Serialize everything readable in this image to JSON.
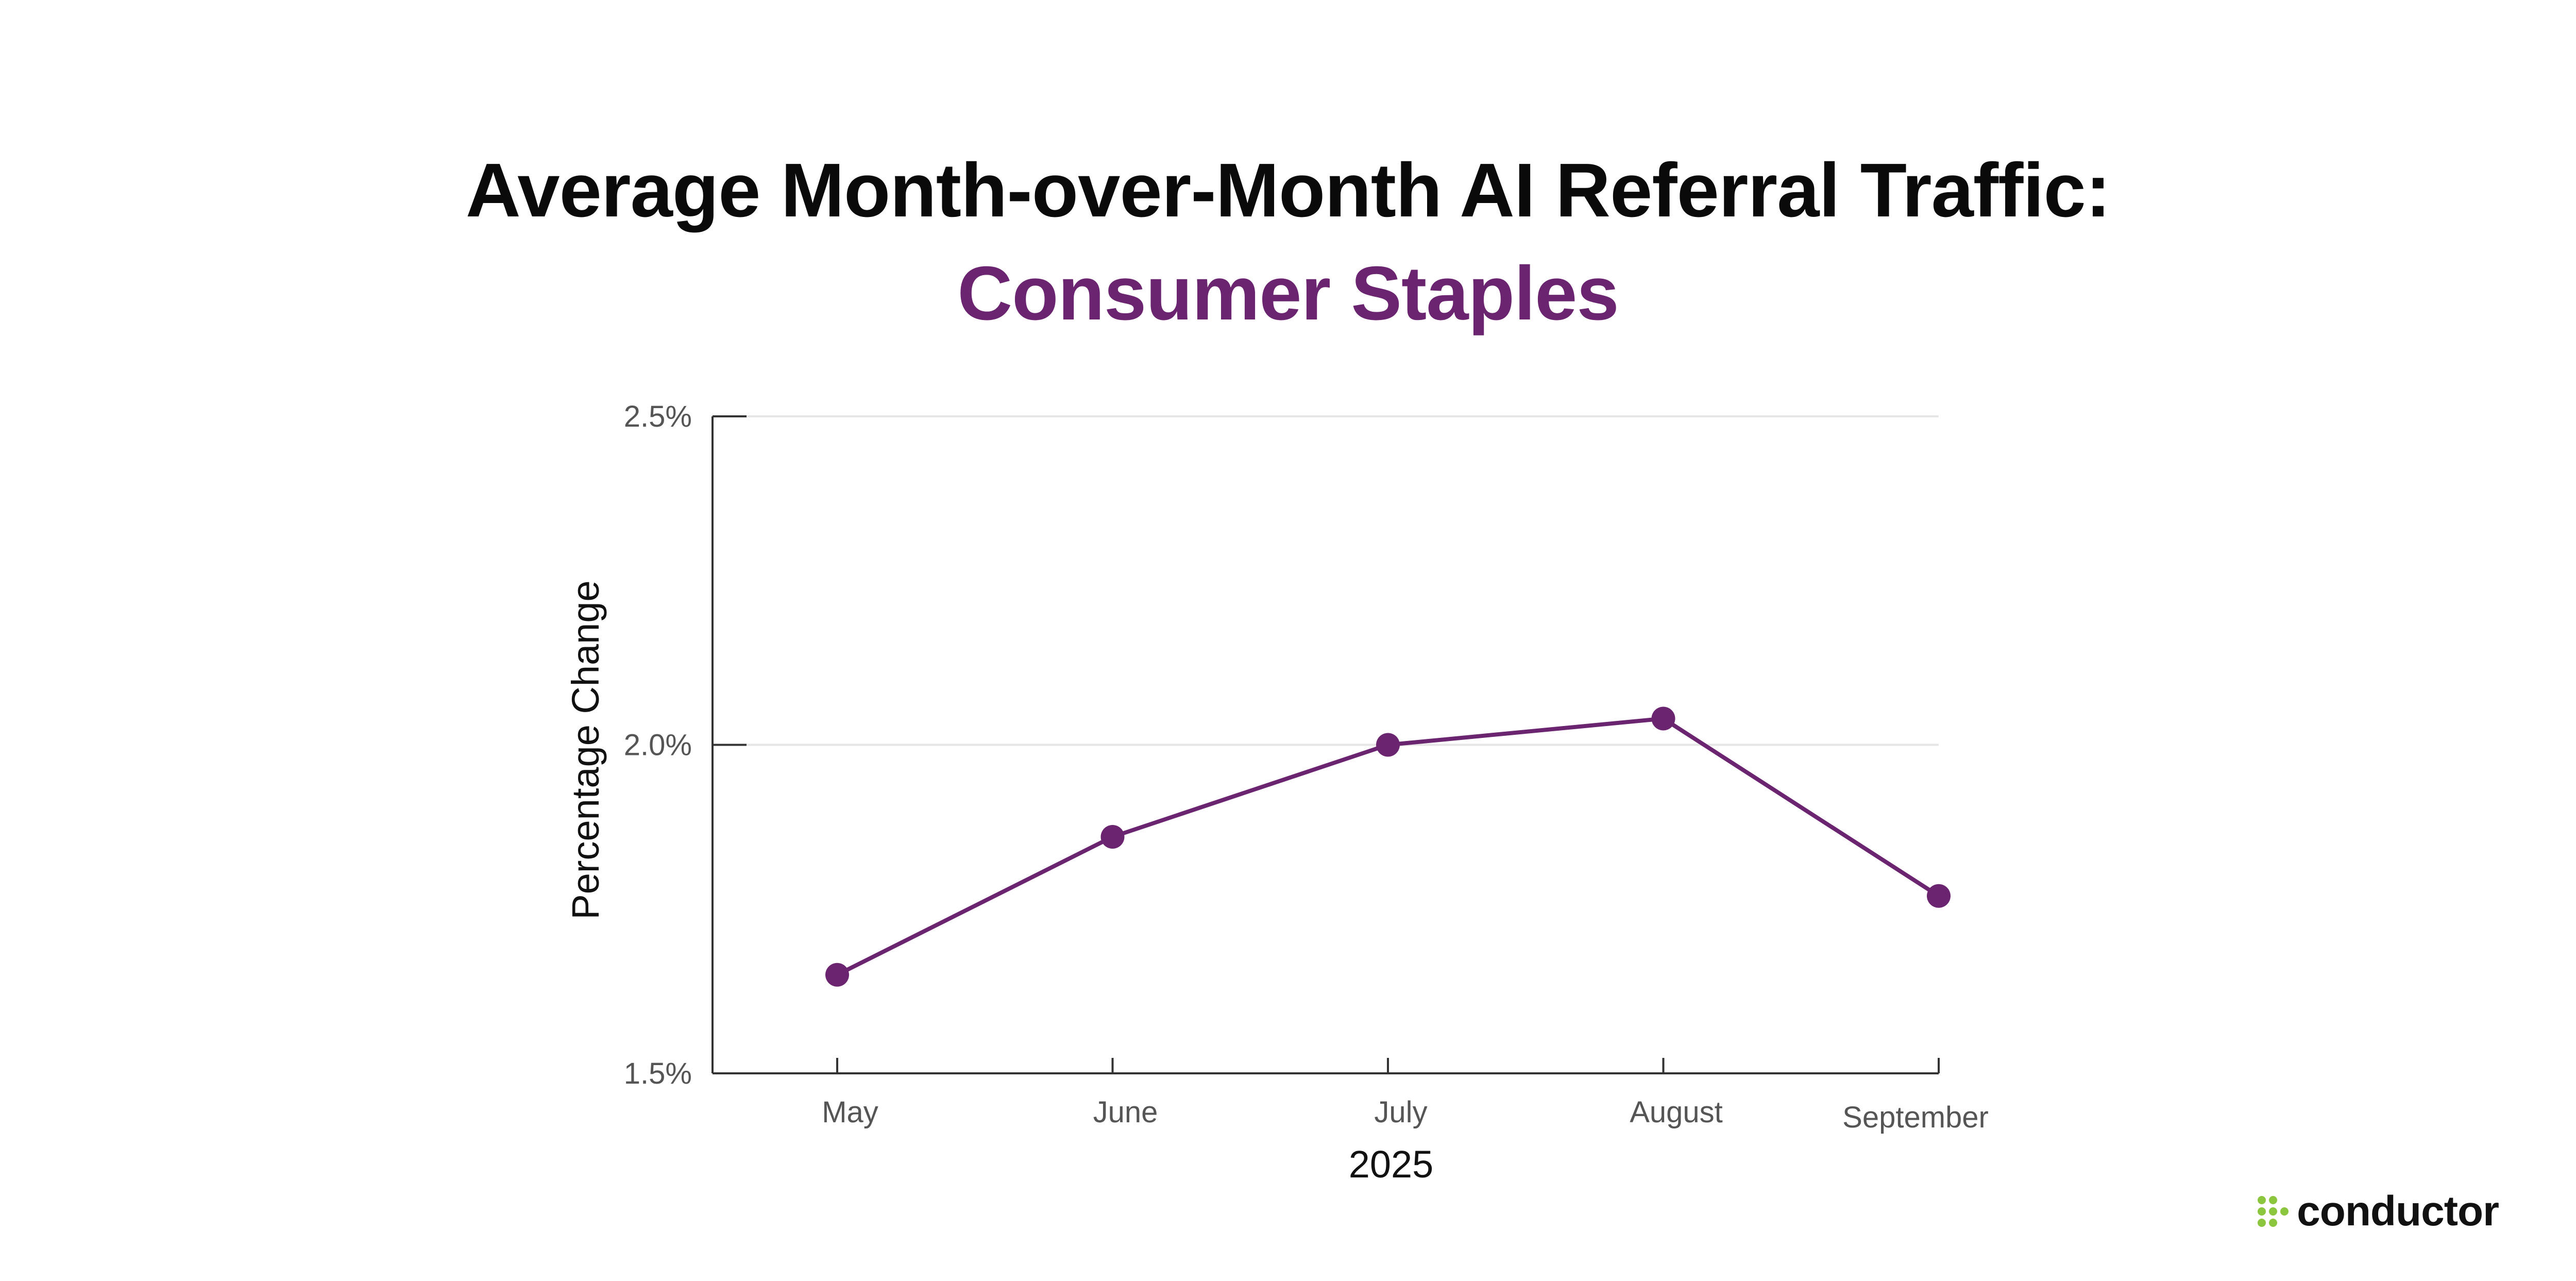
{
  "colors": {
    "accent": "#6b2470",
    "title_text": "#0a0a0a",
    "axis": "#333333",
    "grid": "#e6e6e6",
    "tick_text": "#555555",
    "logo_green": "#8cc63f"
  },
  "logo": {
    "text": "conductor",
    "icon": "dot-grid-icon"
  },
  "chart_data": {
    "type": "line",
    "title": "Average Month-over-Month AI Referral Traffic:",
    "subtitle": "Consumer Staples",
    "xlabel": "2025",
    "ylabel": "Percentage Change",
    "categories": [
      "May",
      "June",
      "July",
      "August",
      "September"
    ],
    "series": [
      {
        "values": [
          1.65,
          1.86,
          2.0,
          2.04,
          1.77
        ]
      }
    ],
    "ylim": [
      1.5,
      2.5
    ],
    "yticks": [
      1.5,
      2.0,
      2.5
    ],
    "ytick_labels": [
      "1.5%",
      "2.0%",
      "2.5%"
    ],
    "grid": "horizontal",
    "legend": "none"
  }
}
